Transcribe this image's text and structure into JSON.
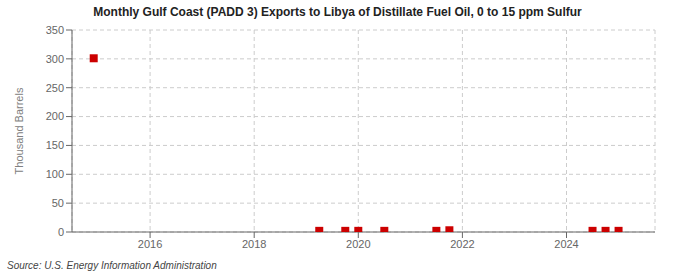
{
  "chart_data": {
    "type": "scatter",
    "title": "Monthly Gulf Coast (PADD 3) Exports to Libya of Distillate Fuel Oil, 0 to 15 ppm Sulfur",
    "ylabel": "Thousand Barrels",
    "source": "Source: U.S. Energy Information Administration",
    "x": [
      2014.917,
      2019.25,
      2019.75,
      2020.0,
      2020.5,
      2021.5,
      2021.75,
      2024.5,
      2024.75,
      2025.0
    ],
    "values": [
      301,
      2,
      2,
      2,
      2,
      2,
      3,
      2,
      2,
      2
    ],
    "color": "#cc0000",
    "marker": "square",
    "xlim": [
      2014.5,
      2025.7
    ],
    "xticks": [
      2016,
      2018,
      2020,
      2022,
      2024
    ],
    "ylim": [
      0,
      350
    ],
    "yticks": [
      0,
      50,
      100,
      150,
      200,
      250,
      300,
      350
    ],
    "grid": true
  }
}
